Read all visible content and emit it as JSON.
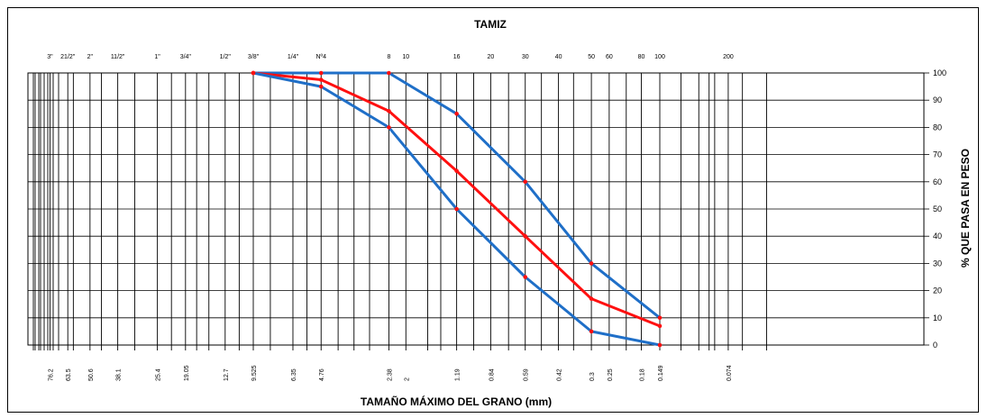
{
  "chart_data": {
    "type": "line",
    "title": "TAMIZ",
    "xlabel": "TAMAÑO MÁXIMO DEL GRANO (mm)",
    "ylabel": "% QUE PASA EN PESO",
    "x_scale": "log",
    "x_reversed": true,
    "ylim": [
      0,
      100
    ],
    "y_ticks": [
      0,
      10,
      20,
      30,
      40,
      50,
      60,
      70,
      80,
      90,
      100
    ],
    "grid": true,
    "sieve_labels": [
      "3\"",
      "21/2\"",
      "2\"",
      "11/2\"",
      "1\"",
      "3/4\"",
      "1/2\"",
      "3/8\"",
      "1/4\"",
      "Nº4",
      "8",
      "10",
      "16",
      "20",
      "30",
      "40",
      "50",
      "60",
      "80",
      "100",
      "200"
    ],
    "sieve_openings": [
      76.2,
      63.5,
      50.6,
      38.1,
      25.4,
      19.05,
      12.7,
      9.525,
      6.35,
      4.76,
      2.38,
      2,
      1.19,
      0.84,
      0.59,
      0.42,
      0.3,
      0.25,
      0.18,
      0.149,
      0.074
    ],
    "sieve_opening_labels": [
      "76.2",
      "63.5",
      "50.6",
      "38.1",
      "25.4",
      "19.05",
      "12.7",
      "9.525",
      "6.35",
      "4.76",
      "2.38",
      "2",
      "1.19",
      "0.84",
      "0.59",
      "0.42",
      "0.3",
      "0.25",
      "0.18",
      "0.149",
      "0.074"
    ],
    "series": [
      {
        "color": "#1f6fc8",
        "x": [
          9.525,
          4.76,
          2.38,
          1.19,
          0.59,
          0.3,
          0.149
        ],
        "y": [
          100,
          100,
          100,
          85,
          60,
          30,
          10
        ]
      },
      {
        "color": "#ff1010",
        "x": [
          9.525,
          4.76,
          2.38,
          1.19,
          0.59,
          0.3,
          0.149
        ],
        "y": [
          100,
          97.5,
          86,
          64,
          40,
          17,
          7
        ]
      },
      {
        "color": "#1f6fc8",
        "x": [
          9.525,
          4.76,
          2.38,
          1.19,
          0.59,
          0.3,
          0.149
        ],
        "y": [
          100,
          95,
          80,
          50,
          25,
          5,
          0
        ]
      }
    ],
    "marker_color": "#ff1010"
  }
}
